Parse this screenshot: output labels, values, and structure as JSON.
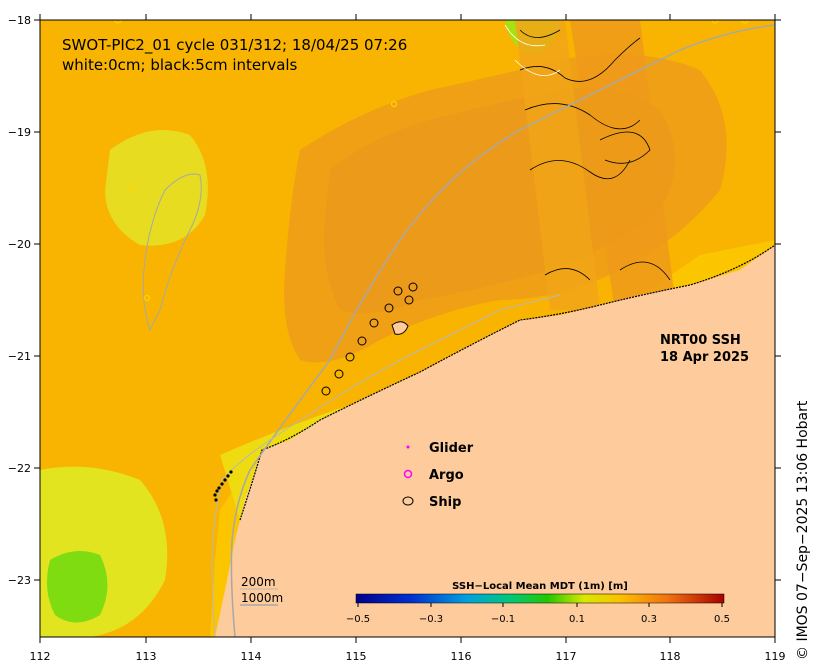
{
  "title": {
    "line1": "SWOT-PIC2_01 cycle 031/312; 18/04/25 07:26",
    "line2": "white:0cm; black:5cm intervals"
  },
  "product": {
    "line1": "NRT00 SSH",
    "line2": "18 Apr 2025"
  },
  "legend": {
    "glider": "Glider",
    "argo": "Argo",
    "ship": "Ship"
  },
  "isobaths": {
    "shallow": "200m",
    "deep": "1000m"
  },
  "colorbar": {
    "title": "SSH−Local Mean MDT (1m) [m]",
    "ticks": [
      "−0.5",
      "−0.3",
      "−0.1",
      "0.1",
      "0.3",
      "0.5"
    ],
    "range": [
      -0.5,
      0.5
    ]
  },
  "axes": {
    "lon_ticks": [
      "112",
      "113",
      "114",
      "115",
      "116",
      "117",
      "118",
      "119"
    ],
    "lat_ticks": [
      "−18",
      "−19",
      "−20",
      "−21",
      "−22",
      "−23"
    ],
    "lon_range": [
      112,
      119
    ],
    "lat_range": [
      -23.5,
      -18
    ]
  },
  "credit": "© IMOS 07−Sep−2025 13:06 Hobart",
  "colors": {
    "land": "#fdcb9c",
    "ssh_mid": "#fbb900",
    "ssh_high": "#f19a10",
    "ssh_low": "#d9ec20",
    "ssh_lower": "#8bdc10",
    "argo": "#ff00ff",
    "glider": "#ff00ff"
  }
}
